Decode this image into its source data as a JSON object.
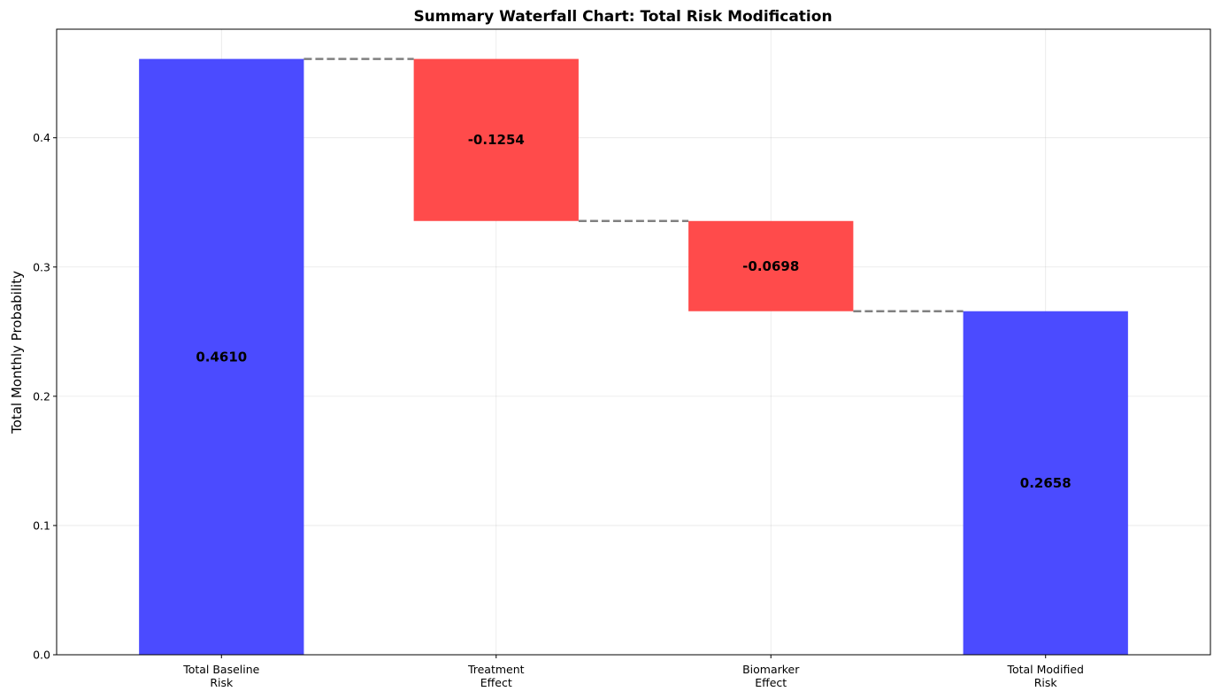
{
  "chart_data": {
    "type": "bar",
    "subtype": "waterfall",
    "title": "Summary Waterfall Chart: Total Risk Modification",
    "xlabel": "",
    "ylabel": "Total Monthly Probability",
    "ylim": [
      0,
      0.484
    ],
    "yticks": [
      0.0,
      0.1,
      0.2,
      0.3,
      0.4
    ],
    "ytick_labels": [
      "0.0",
      "0.1",
      "0.2",
      "0.3",
      "0.4"
    ],
    "grid": true,
    "categories": [
      [
        "Total Baseline",
        "Risk"
      ],
      [
        "Treatment",
        "Effect"
      ],
      [
        "Biomarker",
        "Effect"
      ],
      [
        "Total Modified",
        "Risk"
      ]
    ],
    "bars": [
      {
        "kind": "total",
        "start": 0.0,
        "end": 0.461,
        "label": "0.4610",
        "color": "#4b4bff"
      },
      {
        "kind": "delta",
        "start": 0.461,
        "end": 0.3356,
        "label": "-0.1254",
        "color": "#ff4b4b"
      },
      {
        "kind": "delta",
        "start": 0.3356,
        "end": 0.2658,
        "label": "-0.0698",
        "color": "#ff4b4b"
      },
      {
        "kind": "total",
        "start": 0.0,
        "end": 0.2658,
        "label": "0.2658",
        "color": "#4b4bff"
      }
    ],
    "connectors": [
      0.461,
      0.3356,
      0.2658
    ],
    "colors": {
      "total": "#4b4bff",
      "decrease": "#ff4b4b",
      "connector": "#808080"
    }
  }
}
